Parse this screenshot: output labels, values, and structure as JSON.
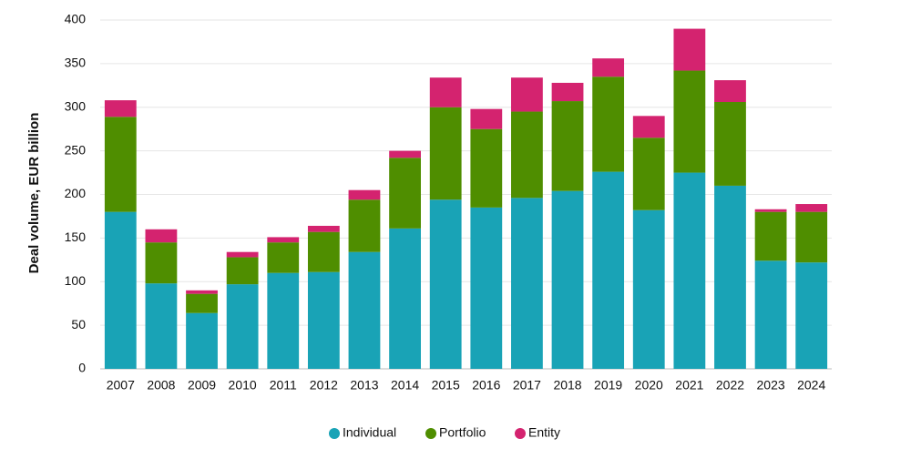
{
  "chart_data": {
    "type": "stacked-bar",
    "y_axis_label": "Deal volume, EUR billion",
    "categories": [
      "2007",
      "2008",
      "2009",
      "2010",
      "2011",
      "2012",
      "2013",
      "2014",
      "2015",
      "2016",
      "2017",
      "2018",
      "2019",
      "2020",
      "2021",
      "2022",
      "2023",
      "2024"
    ],
    "series": [
      {
        "name": "Individual",
        "color": "#19a3b6",
        "values": [
          180,
          98,
          64,
          97,
          110,
          111,
          134,
          161,
          194,
          185,
          196,
          204,
          226,
          182,
          225,
          210,
          124,
          122
        ]
      },
      {
        "name": "Portfolio",
        "color": "#4f8e00",
        "values": [
          109,
          47,
          22,
          31,
          35,
          46,
          60,
          81,
          106,
          90,
          99,
          103,
          109,
          83,
          117,
          96,
          56,
          58
        ]
      },
      {
        "name": "Entity",
        "color": "#d4236f",
        "values": [
          19,
          15,
          4,
          6,
          6,
          7,
          11,
          8,
          34,
          23,
          39,
          21,
          21,
          25,
          48,
          25,
          3,
          9
        ]
      }
    ],
    "ylim": [
      0,
      400
    ],
    "yticks": [
      0,
      50,
      100,
      150,
      200,
      250,
      300,
      350,
      400
    ],
    "grid": true,
    "legend": "bottom"
  }
}
